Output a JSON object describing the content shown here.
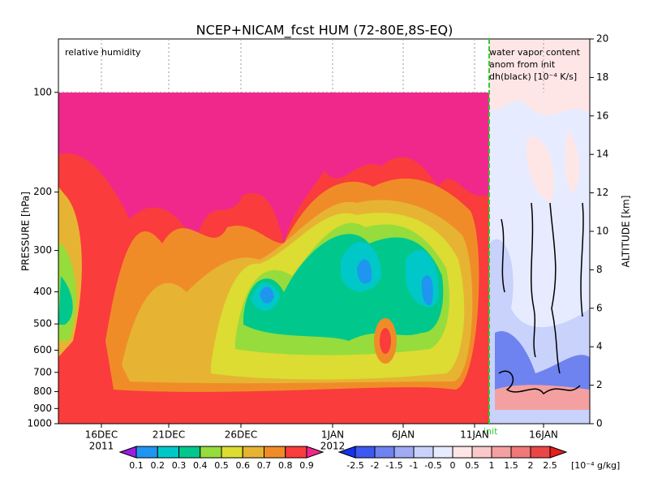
{
  "chart_data": {
    "type": "contour",
    "title": "NCEP+NICAM_fcst HUM (72-80E,8S-EQ)",
    "ylabel": "PRESSURE [hPa]",
    "y2label": "ALTITUDE [km]",
    "annotations": [
      "relative humidity",
      "water vapor content",
      "anom from init",
      "dh(black) [10⁻⁴ K/s]",
      "init"
    ],
    "xticks": [
      "16DEC",
      "21DEC",
      "26DEC",
      "1JAN",
      "6JAN",
      "11JAN",
      "16JAN"
    ],
    "year_labels": [
      "2011",
      "2012"
    ],
    "yscale": "log",
    "ylim": [
      1000,
      69
    ],
    "yticks": [
      100,
      200,
      300,
      400,
      500,
      600,
      700,
      800,
      900,
      1000
    ],
    "y2lim": [
      0,
      20
    ],
    "y2ticks": [
      0,
      2,
      4,
      6,
      8,
      10,
      12,
      14,
      16,
      18,
      20
    ],
    "grid": true,
    "colorbars": [
      {
        "levels": [
          0.1,
          0.2,
          0.3,
          0.4,
          0.5,
          0.6,
          0.7,
          0.8,
          0.9
        ],
        "colors": [
          "#9b1ee0",
          "#1e96f0",
          "#00c8c8",
          "#00c88c",
          "#96dc3c",
          "#dcdc32",
          "#e6b432",
          "#f08c28",
          "#fa3c3c",
          "#f0288c"
        ]
      },
      {
        "levels": [
          -2.5,
          -2,
          -1.5,
          -1,
          -0.5,
          0,
          0.5,
          1,
          1.5,
          2,
          2.5
        ],
        "colors": [
          "#1432f0",
          "#3c5af0",
          "#6e82f0",
          "#a0aaf5",
          "#c8d2fa",
          "#e6ebff",
          "#ffe6e6",
          "#fac8c8",
          "#f5a0a0",
          "#f07878",
          "#eb4646",
          "#e61e1e"
        ],
        "unit": "[10⁻⁴ g/kg]"
      }
    ]
  }
}
